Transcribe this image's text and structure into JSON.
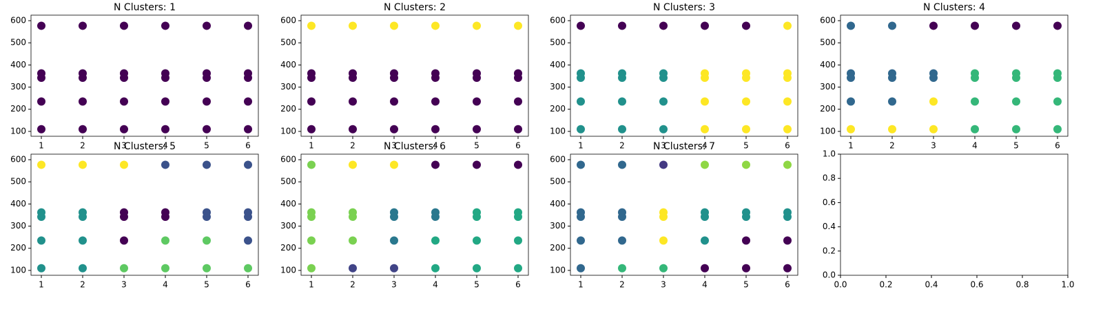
{
  "chart_data": [
    {
      "type": "scatter",
      "title": "N Clusters: 1",
      "x": [
        1,
        1,
        1,
        1,
        1,
        2,
        2,
        2,
        2,
        2,
        3,
        3,
        3,
        3,
        3,
        4,
        4,
        4,
        4,
        4,
        5,
        5,
        5,
        5,
        5,
        6,
        6,
        6,
        6,
        6
      ],
      "values": [
        110,
        235,
        342,
        362,
        577,
        110,
        235,
        342,
        362,
        577,
        110,
        235,
        342,
        362,
        577,
        110,
        235,
        342,
        362,
        577,
        110,
        235,
        342,
        362,
        577,
        110,
        235,
        342,
        362,
        577
      ],
      "color": "#440154",
      "xlim": [
        0.75,
        6.25
      ],
      "ylim": [
        78,
        625
      ],
      "xticks": [
        1,
        2,
        3,
        4,
        5,
        6
      ],
      "yticks": [
        100,
        200,
        300,
        400,
        500,
        600
      ]
    },
    {
      "type": "scatter",
      "title": "N Clusters: 2",
      "x": [
        1,
        1,
        1,
        1,
        1,
        2,
        2,
        2,
        2,
        2,
        3,
        3,
        3,
        3,
        3,
        4,
        4,
        4,
        4,
        4,
        5,
        5,
        5,
        5,
        5,
        6,
        6,
        6,
        6,
        6
      ],
      "values": [
        110,
        235,
        342,
        362,
        577,
        110,
        235,
        342,
        362,
        577,
        110,
        235,
        342,
        362,
        577,
        110,
        235,
        342,
        362,
        577,
        110,
        235,
        342,
        362,
        577,
        110,
        235,
        342,
        362,
        577
      ],
      "colors": [
        "#440154",
        "#440154",
        "#440154",
        "#440154",
        "#fde725",
        "#440154",
        "#440154",
        "#440154",
        "#440154",
        "#fde725",
        "#440154",
        "#440154",
        "#440154",
        "#440154",
        "#fde725",
        "#440154",
        "#440154",
        "#440154",
        "#440154",
        "#fde725",
        "#440154",
        "#440154",
        "#440154",
        "#440154",
        "#fde725",
        "#440154",
        "#440154",
        "#440154",
        "#440154",
        "#fde725"
      ],
      "xlim": [
        0.75,
        6.25
      ],
      "ylim": [
        78,
        625
      ],
      "xticks": [
        1,
        2,
        3,
        4,
        5,
        6
      ],
      "yticks": [
        100,
        200,
        300,
        400,
        500,
        600
      ]
    },
    {
      "type": "scatter",
      "title": "N Clusters: 3",
      "x": [
        1,
        1,
        1,
        1,
        1,
        2,
        2,
        2,
        2,
        2,
        3,
        3,
        3,
        3,
        3,
        4,
        4,
        4,
        4,
        4,
        5,
        5,
        5,
        5,
        5,
        6,
        6,
        6,
        6,
        6
      ],
      "values": [
        110,
        235,
        342,
        362,
        577,
        110,
        235,
        342,
        362,
        577,
        110,
        235,
        342,
        362,
        577,
        110,
        235,
        342,
        362,
        577,
        110,
        235,
        342,
        362,
        577,
        110,
        235,
        342,
        362,
        577
      ],
      "colors": [
        "#21918c",
        "#21918c",
        "#21918c",
        "#21918c",
        "#440154",
        "#21918c",
        "#21918c",
        "#21918c",
        "#21918c",
        "#440154",
        "#21918c",
        "#21918c",
        "#21918c",
        "#21918c",
        "#440154",
        "#fde725",
        "#fde725",
        "#fde725",
        "#fde725",
        "#440154",
        "#fde725",
        "#fde725",
        "#fde725",
        "#fde725",
        "#440154",
        "#fde725",
        "#fde725",
        "#fde725",
        "#fde725",
        "#fde725"
      ],
      "xlim": [
        0.75,
        6.25
      ],
      "ylim": [
        78,
        625
      ],
      "xticks": [
        1,
        2,
        3,
        4,
        5,
        6
      ],
      "yticks": [
        100,
        200,
        300,
        400,
        500,
        600
      ]
    },
    {
      "type": "scatter",
      "title": "N Clusters: 4",
      "x": [
        1,
        1,
        1,
        1,
        1,
        2,
        2,
        2,
        2,
        2,
        3,
        3,
        3,
        3,
        3,
        4,
        4,
        4,
        4,
        4,
        5,
        5,
        5,
        5,
        5,
        6,
        6,
        6,
        6,
        6
      ],
      "values": [
        110,
        235,
        342,
        362,
        577,
        110,
        235,
        342,
        362,
        577,
        110,
        235,
        342,
        362,
        577,
        110,
        235,
        342,
        362,
        577,
        110,
        235,
        342,
        362,
        577,
        110,
        235,
        342,
        362,
        577
      ],
      "colors": [
        "#fde725",
        "#31688e",
        "#31688e",
        "#31688e",
        "#31688e",
        "#fde725",
        "#31688e",
        "#31688e",
        "#31688e",
        "#31688e",
        "#fde725",
        "#fde725",
        "#31688e",
        "#31688e",
        "#440154",
        "#35b779",
        "#35b779",
        "#35b779",
        "#35b779",
        "#440154",
        "#35b779",
        "#35b779",
        "#35b779",
        "#35b779",
        "#440154",
        "#35b779",
        "#35b779",
        "#35b779",
        "#35b779",
        "#440154"
      ],
      "xlim": [
        0.75,
        6.25
      ],
      "ylim": [
        78,
        625
      ],
      "xticks": [
        1,
        2,
        3,
        4,
        5,
        6
      ],
      "yticks": [
        100,
        200,
        300,
        400,
        500,
        600
      ]
    },
    {
      "type": "scatter",
      "title": "N Clusters: 5",
      "x": [
        1,
        1,
        1,
        1,
        1,
        2,
        2,
        2,
        2,
        2,
        3,
        3,
        3,
        3,
        3,
        4,
        4,
        4,
        4,
        4,
        5,
        5,
        5,
        5,
        5,
        6,
        6,
        6,
        6,
        6
      ],
      "values": [
        110,
        235,
        342,
        362,
        577,
        110,
        235,
        342,
        362,
        577,
        110,
        235,
        342,
        362,
        577,
        110,
        235,
        342,
        362,
        577,
        110,
        235,
        342,
        362,
        577,
        110,
        235,
        342,
        362,
        577
      ],
      "colors": [
        "#21918c",
        "#21918c",
        "#21918c",
        "#21918c",
        "#fde725",
        "#21918c",
        "#21918c",
        "#21918c",
        "#21918c",
        "#fde725",
        "#5ec962",
        "#440154",
        "#440154",
        "#440154",
        "#fde725",
        "#5ec962",
        "#5ec962",
        "#440154",
        "#440154",
        "#3b528b",
        "#5ec962",
        "#5ec962",
        "#3b528b",
        "#3b528b",
        "#3b528b",
        "#5ec962",
        "#3b528b",
        "#3b528b",
        "#3b528b",
        "#3b528b"
      ],
      "xlim": [
        0.75,
        6.25
      ],
      "ylim": [
        78,
        625
      ],
      "xticks": [
        1,
        2,
        3,
        4,
        5,
        6
      ],
      "yticks": [
        100,
        200,
        300,
        400,
        500,
        600
      ]
    },
    {
      "type": "scatter",
      "title": "N Clusters: 6",
      "x": [
        1,
        1,
        1,
        1,
        1,
        2,
        2,
        2,
        2,
        2,
        3,
        3,
        3,
        3,
        3,
        4,
        4,
        4,
        4,
        4,
        5,
        5,
        5,
        5,
        5,
        6,
        6,
        6,
        6,
        6
      ],
      "values": [
        110,
        235,
        342,
        362,
        577,
        110,
        235,
        342,
        362,
        577,
        110,
        235,
        342,
        362,
        577,
        110,
        235,
        342,
        362,
        577,
        110,
        235,
        342,
        362,
        577,
        110,
        235,
        342,
        362,
        577
      ],
      "colors": [
        "#7ad151",
        "#7ad151",
        "#7ad151",
        "#7ad151",
        "#7ad151",
        "#414487",
        "#7ad151",
        "#7ad151",
        "#7ad151",
        "#fde725",
        "#414487",
        "#2a788e",
        "#2a788e",
        "#2a788e",
        "#fde725",
        "#22a884",
        "#22a884",
        "#2a788e",
        "#2a788e",
        "#440154",
        "#22a884",
        "#22a884",
        "#22a884",
        "#22a884",
        "#440154",
        "#22a884",
        "#22a884",
        "#22a884",
        "#22a884",
        "#440154"
      ],
      "xlim": [
        0.75,
        6.25
      ],
      "ylim": [
        78,
        625
      ],
      "xticks": [
        1,
        2,
        3,
        4,
        5,
        6
      ],
      "yticks": [
        100,
        200,
        300,
        400,
        500,
        600
      ]
    },
    {
      "type": "scatter",
      "title": "N Clusters: 7",
      "x": [
        1,
        1,
        1,
        1,
        1,
        2,
        2,
        2,
        2,
        2,
        3,
        3,
        3,
        3,
        3,
        4,
        4,
        4,
        4,
        4,
        5,
        5,
        5,
        5,
        5,
        6,
        6,
        6,
        6,
        6
      ],
      "values": [
        110,
        235,
        342,
        362,
        577,
        110,
        235,
        342,
        362,
        577,
        110,
        235,
        342,
        362,
        577,
        110,
        235,
        342,
        362,
        577,
        110,
        235,
        342,
        362,
        577,
        110,
        235,
        342,
        362,
        577
      ],
      "colors": [
        "#31688e",
        "#31688e",
        "#31688e",
        "#31688e",
        "#31688e",
        "#35b779",
        "#31688e",
        "#31688e",
        "#31688e",
        "#31688e",
        "#35b779",
        "#fde725",
        "#fde725",
        "#fde725",
        "#443983",
        "#440154",
        "#21918c",
        "#21918c",
        "#21918c",
        "#8fd744",
        "#440154",
        "#440154",
        "#21918c",
        "#21918c",
        "#8fd744",
        "#440154",
        "#440154",
        "#21918c",
        "#21918c",
        "#8fd744"
      ],
      "xlim": [
        0.75,
        6.25
      ],
      "ylim": [
        78,
        625
      ],
      "xticks": [
        1,
        2,
        3,
        4,
        5,
        6
      ],
      "yticks": [
        100,
        200,
        300,
        400,
        500,
        600
      ]
    },
    {
      "type": "scatter",
      "xlim": [
        0,
        1
      ],
      "ylim": [
        0,
        1
      ],
      "xticks": [
        {
          "value": 0,
          "label": "0.0"
        },
        {
          "value": 0.2,
          "label": "0.2"
        },
        {
          "value": 0.4,
          "label": "0.4"
        },
        {
          "value": 0.6,
          "label": "0.6"
        },
        {
          "value": 0.8,
          "label": "0.8"
        },
        {
          "value": 1,
          "label": "1.0"
        }
      ],
      "yticks": [
        {
          "value": 0,
          "label": "0.0"
        },
        {
          "value": 0.2,
          "label": "0.2"
        },
        {
          "value": 0.4,
          "label": "0.4"
        },
        {
          "value": 0.6,
          "label": "0.6"
        },
        {
          "value": 0.8,
          "label": "0.8"
        },
        {
          "value": 1,
          "label": "1.0"
        }
      ]
    }
  ]
}
